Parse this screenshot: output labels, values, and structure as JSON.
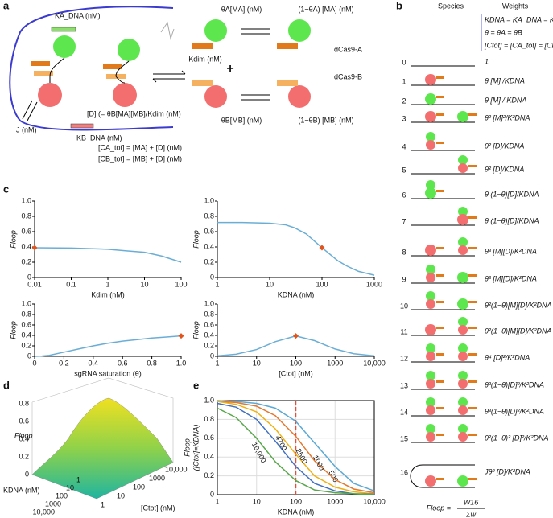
{
  "panel_labels": [
    "a",
    "b",
    "c",
    "d",
    "e"
  ],
  "panel_a": {
    "labels": [
      "KA_DNA (nM)",
      "J (nM)",
      "[D] (= θB[MA][MB]/Kdim (nM)",
      "KB_DNA (nM)",
      "Kdim (nM)",
      "θA[MA] (nM)",
      "(1−θA) [MA] (nM)",
      "dCas9-A",
      "θB[MB] (nM)",
      "(1−θB) [MB] (nM)",
      "dCas9-B",
      "[CA_tot] = [MA] + [D] (nM)",
      "[CB_tot] = [MB] + [D] (nM)",
      "+"
    ]
  },
  "panel_b": {
    "headers": [
      "Species",
      "Weights"
    ],
    "definitions": [
      "KDNA = KA_DNA = KB_DNA",
      "θ = θA = θB",
      "[Ctot] = [CA_tot] = [CB_tot]"
    ],
    "rows": [
      {
        "index": 0,
        "weight": "1"
      },
      {
        "index": 1,
        "weight": "θ [M] /KDNA"
      },
      {
        "index": 2,
        "weight": "θ [M] / KDNA"
      },
      {
        "index": 3,
        "weight": "θ² [M]²/K²DNA"
      },
      {
        "index": 4,
        "weight": "θ² [D]/KDNA"
      },
      {
        "index": 5,
        "weight": "θ² [D]/KDNA"
      },
      {
        "index": 6,
        "weight": "θ (1−θ)[D]/KDNA"
      },
      {
        "index": 7,
        "weight": "θ (1−θ)[D]/KDNA"
      },
      {
        "index": 8,
        "weight": "θ³ [M][D]/K²DNA"
      },
      {
        "index": 9,
        "weight": "θ³ [M][D]/K²DNA"
      },
      {
        "index": 10,
        "weight": "θ²(1−θ)[M][D]/K²DNA"
      },
      {
        "index": 11,
        "weight": "θ²(1−θ)[M][D]/K²DNA"
      },
      {
        "index": 12,
        "weight": "θ⁴ [D]²/K²DNA"
      },
      {
        "index": 13,
        "weight": "θ³(1−θ)[D]²/K²DNA"
      },
      {
        "index": 14,
        "weight": "θ³(1−θ)[D]²/K²DNA"
      },
      {
        "index": 15,
        "weight": "θ²(1−θ)² [D]²/K²DNA"
      },
      {
        "index": 16,
        "weight": "Jθ² [D]/K²DNA"
      }
    ],
    "formula": {
      "lhs": "Floop =",
      "numerator": "W16",
      "denominator": "Σw"
    }
  },
  "panel_d": {
    "z_label": "Floop",
    "z_ticks": [
      "0",
      "0.2",
      "0.4",
      "0.6",
      "0.8"
    ],
    "y_label": "KDNA (nM)",
    "y_ticks": [
      "1",
      "10",
      "100",
      "1000",
      "10,000"
    ],
    "x_label": "[Ctot] (nM)",
    "x_ticks": [
      "1",
      "10",
      "100",
      "1000",
      "10,000"
    ]
  },
  "chart_data": [
    {
      "type": "line",
      "x_label": "Kdim (nM)",
      "y_label": [
        "Floop"
      ],
      "xscale": "log",
      "xlim": [
        0.01,
        100
      ],
      "xticks": [
        0.01,
        0.1,
        1,
        10,
        100
      ],
      "ylim": [
        0,
        1
      ],
      "yticks": [
        0,
        0.2,
        0.4,
        0.6,
        0.8,
        {
          "value": 1,
          "label": "1.0"
        }
      ],
      "series": [
        {
          "color": "#6aaed6",
          "x": [
            0.01,
            0.1,
            1,
            3,
            10,
            30,
            100
          ],
          "values": [
            0.39,
            0.385,
            0.37,
            0.35,
            0.33,
            0.28,
            0.2
          ]
        }
      ],
      "highlight": {
        "x": 0.01,
        "value": 0.39,
        "color": "#e2541b"
      }
    },
    {
      "type": "line",
      "x_label": "KDNA (nM)",
      "y_label": [
        "Floop"
      ],
      "xscale": "log",
      "xlim": [
        1,
        1000
      ],
      "xticks": [
        1,
        10,
        100,
        1000
      ],
      "ylim": [
        0,
        1
      ],
      "yticks": [
        0,
        0.2,
        0.4,
        0.6,
        0.8,
        {
          "value": 1,
          "label": "1.0"
        }
      ],
      "series": [
        {
          "color": "#6aaed6",
          "x": [
            1,
            3,
            10,
            20,
            30,
            50,
            100,
            200,
            300,
            500,
            1000
          ],
          "values": [
            0.72,
            0.72,
            0.71,
            0.69,
            0.65,
            0.57,
            0.39,
            0.22,
            0.15,
            0.08,
            0.03
          ]
        }
      ],
      "highlight": {
        "x": 100,
        "value": 0.39,
        "color": "#e2541b"
      }
    },
    {
      "type": "line",
      "x_label": "sgRNA saturation (θ)",
      "y_label": [
        "Floop"
      ],
      "xscale": "linear",
      "xlim": [
        0,
        1
      ],
      "xticks": [
        0,
        0.2,
        0.4,
        0.6,
        0.8,
        {
          "value": 1,
          "label": "1.0"
        }
      ],
      "ylim": [
        0,
        1
      ],
      "yticks": [
        0,
        0.2,
        0.4,
        0.6,
        0.8,
        {
          "value": 1,
          "label": "1.0"
        }
      ],
      "series": [
        {
          "color": "#6aaed6",
          "x": [
            0,
            0.05,
            0.1,
            0.2,
            0.3,
            0.4,
            0.5,
            0.6,
            0.7,
            0.8,
            0.9,
            1
          ],
          "values": [
            0,
            0.005,
            0.02,
            0.08,
            0.14,
            0.2,
            0.25,
            0.29,
            0.32,
            0.35,
            0.37,
            0.39
          ]
        }
      ],
      "highlight": {
        "x": 1,
        "value": 0.39,
        "color": "#e2541b"
      }
    },
    {
      "type": "line",
      "x_label": "[Ctot] (nM)",
      "y_label": [
        "Floop"
      ],
      "xscale": "log",
      "xlim": [
        1,
        10000
      ],
      "xticks": [
        1,
        10,
        100,
        1000,
        {
          "value": 10000,
          "label": "10,000"
        }
      ],
      "ylim": [
        0,
        1
      ],
      "yticks": [
        0,
        0.2,
        0.4,
        0.6,
        0.8,
        {
          "value": 1,
          "label": "1.0"
        }
      ],
      "series": [
        {
          "color": "#6aaed6",
          "x": [
            1,
            3,
            10,
            30,
            100,
            300,
            1000,
            3000,
            10000
          ],
          "values": [
            0.01,
            0.04,
            0.13,
            0.28,
            0.39,
            0.3,
            0.14,
            0.05,
            0.01
          ]
        }
      ],
      "highlight": {
        "x": 100,
        "value": 0.39,
        "color": "#e2541b"
      }
    },
    {
      "type": "line",
      "x_label": "KDNA (nM)",
      "y_label": [
        "Floop",
        "([Ctot]=KDNA)"
      ],
      "xscale": "log",
      "grid": true,
      "xlim": [
        1,
        10000
      ],
      "xticks": [
        1,
        10,
        100,
        1000,
        {
          "value": 10000,
          "label": "10,000"
        }
      ],
      "ylim": [
        0,
        1
      ],
      "yticks": [
        0,
        0.2,
        0.4,
        0.6,
        0.8,
        {
          "value": 1,
          "label": "1.0"
        }
      ],
      "vline": {
        "x": 100,
        "color": "#e0503a"
      },
      "series": [
        {
          "name": "500",
          "color": "#5aa9d6",
          "x": [
            1,
            3,
            10,
            30,
            100,
            300,
            1000,
            3000,
            10000
          ],
          "values": [
            1.0,
            0.99,
            0.97,
            0.92,
            0.78,
            0.55,
            0.3,
            0.12,
            0.04
          ]
        },
        {
          "name": "1000",
          "color": "#e4772b",
          "x": [
            1,
            3,
            10,
            30,
            100,
            300,
            1000,
            3000,
            10000
          ],
          "values": [
            0.99,
            0.98,
            0.94,
            0.84,
            0.62,
            0.36,
            0.16,
            0.06,
            0.02
          ]
        },
        {
          "name": "2500",
          "color": "#f0b010",
          "x": [
            1,
            3,
            10,
            30,
            100,
            300,
            1000,
            3000,
            10000
          ],
          "values": [
            0.99,
            0.96,
            0.88,
            0.7,
            0.43,
            0.2,
            0.08,
            0.03,
            0.01
          ]
        },
        {
          "name": "4700",
          "color": "#3f6fc2",
          "x": [
            1,
            3,
            10,
            30,
            100,
            300,
            1000,
            3000,
            10000
          ],
          "values": [
            0.97,
            0.93,
            0.8,
            0.57,
            0.3,
            0.12,
            0.04,
            0.01,
            0.005
          ]
        },
        {
          "name": "10,000",
          "color": "#58a84a",
          "x": [
            1,
            3,
            10,
            30,
            100,
            300,
            1000,
            3000,
            10000
          ],
          "values": [
            0.92,
            0.82,
            0.6,
            0.35,
            0.15,
            0.05,
            0.02,
            0.01,
            0
          ]
        }
      ]
    }
  ]
}
